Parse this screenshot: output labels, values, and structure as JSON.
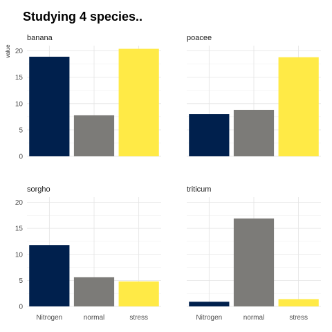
{
  "chart_data": {
    "type": "bar",
    "title": "Studying 4 species..",
    "ylabel": "value",
    "xlabel": "",
    "categories": [
      "Nitrogen",
      "normal",
      "stress"
    ],
    "colors": [
      "#00204D",
      "#7C7B78",
      "#FFEA46"
    ],
    "ylim": [
      0,
      21
    ],
    "yticks": [
      0,
      5,
      10,
      15,
      20
    ],
    "grid": true,
    "panels": [
      {
        "name": "banana",
        "values": [
          18.9,
          7.8,
          20.4
        ]
      },
      {
        "name": "poacee",
        "values": [
          8.0,
          8.8,
          18.8
        ]
      },
      {
        "name": "sorgho",
        "values": [
          11.8,
          5.6,
          4.8
        ]
      },
      {
        "name": "triticum",
        "values": [
          0.9,
          16.9,
          1.4
        ]
      }
    ]
  }
}
